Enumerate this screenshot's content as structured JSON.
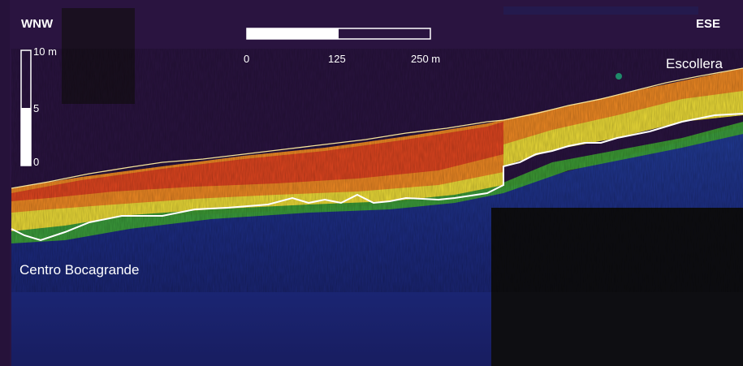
{
  "orientation": {
    "left": "WNW",
    "right": "ESE"
  },
  "horizontal_scale": {
    "tick_labels": [
      "0",
      "125",
      "250 m"
    ],
    "filled_fraction": 0.5
  },
  "vertical_scale": {
    "tick_labels": [
      "10 m",
      "5",
      "0"
    ],
    "filled_fraction": 0.5
  },
  "sites": {
    "left": "Centro Bocagrande",
    "right": "Escollera"
  },
  "colors": {
    "background": "#26123a",
    "water_deep": "#1a2170",
    "water_mid": "#1f4fa0",
    "seabed_green": "#4fbf3a",
    "seabed_yellow": "#f2e43a",
    "seabed_orange": "#f08a24",
    "seabed_red": "#e03a20",
    "boundary_line": "#ffffff",
    "masked_block": "#111014"
  }
}
